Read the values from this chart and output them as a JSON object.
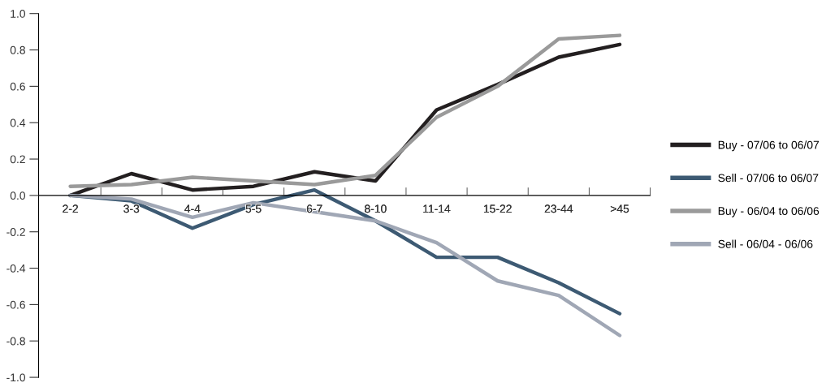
{
  "chart_data": {
    "type": "line",
    "categories": [
      "2-2",
      "3-3",
      "4-4",
      "5-5",
      "6-7",
      "8-10",
      "11-14",
      "15-22",
      "23-44",
      ">45"
    ],
    "series": [
      {
        "name": "Buy - 07/06 to 06/07",
        "color": "#231f20",
        "values": [
          0.0,
          0.12,
          0.03,
          0.05,
          0.13,
          0.08,
          0.47,
          0.61,
          0.76,
          0.83
        ]
      },
      {
        "name": "Sell - 07/06 to 06/07",
        "color": "#3d5a73",
        "values": [
          0.0,
          -0.03,
          -0.18,
          -0.05,
          0.03,
          -0.14,
          -0.34,
          -0.34,
          -0.48,
          -0.65
        ]
      },
      {
        "name": "Buy - 06/04 to 06/06",
        "color": "#9a9a9a",
        "values": [
          0.05,
          0.06,
          0.1,
          0.08,
          0.06,
          0.11,
          0.43,
          0.6,
          0.86,
          0.88
        ]
      },
      {
        "name": "Sell - 06/04 - 06/06",
        "color": "#a0a7b5",
        "values": [
          0.0,
          -0.02,
          -0.12,
          -0.04,
          -0.09,
          -0.14,
          -0.26,
          -0.47,
          -0.55,
          -0.77
        ]
      }
    ],
    "ylim": [
      -1.0,
      1.0
    ],
    "yticks": [
      {
        "value": 1.0,
        "label": "1.0"
      },
      {
        "value": 0.8,
        "label": "0.8"
      },
      {
        "value": 0.6,
        "label": "0.6"
      },
      {
        "value": 0.4,
        "label": "0.4"
      },
      {
        "value": 0.2,
        "label": "0.2"
      },
      {
        "value": 0.0,
        "label": "0.0"
      },
      {
        "value": -0.2,
        "label": "-0.2"
      },
      {
        "value": -0.4,
        "label": "-0.4"
      },
      {
        "value": -0.6,
        "label": "-0.6"
      },
      {
        "value": -0.8,
        "label": "-0.8"
      },
      {
        "value": -1.0,
        "label": "-1.0"
      }
    ],
    "grid": false,
    "legend": "right",
    "marker": "none",
    "line_style": "solid"
  }
}
